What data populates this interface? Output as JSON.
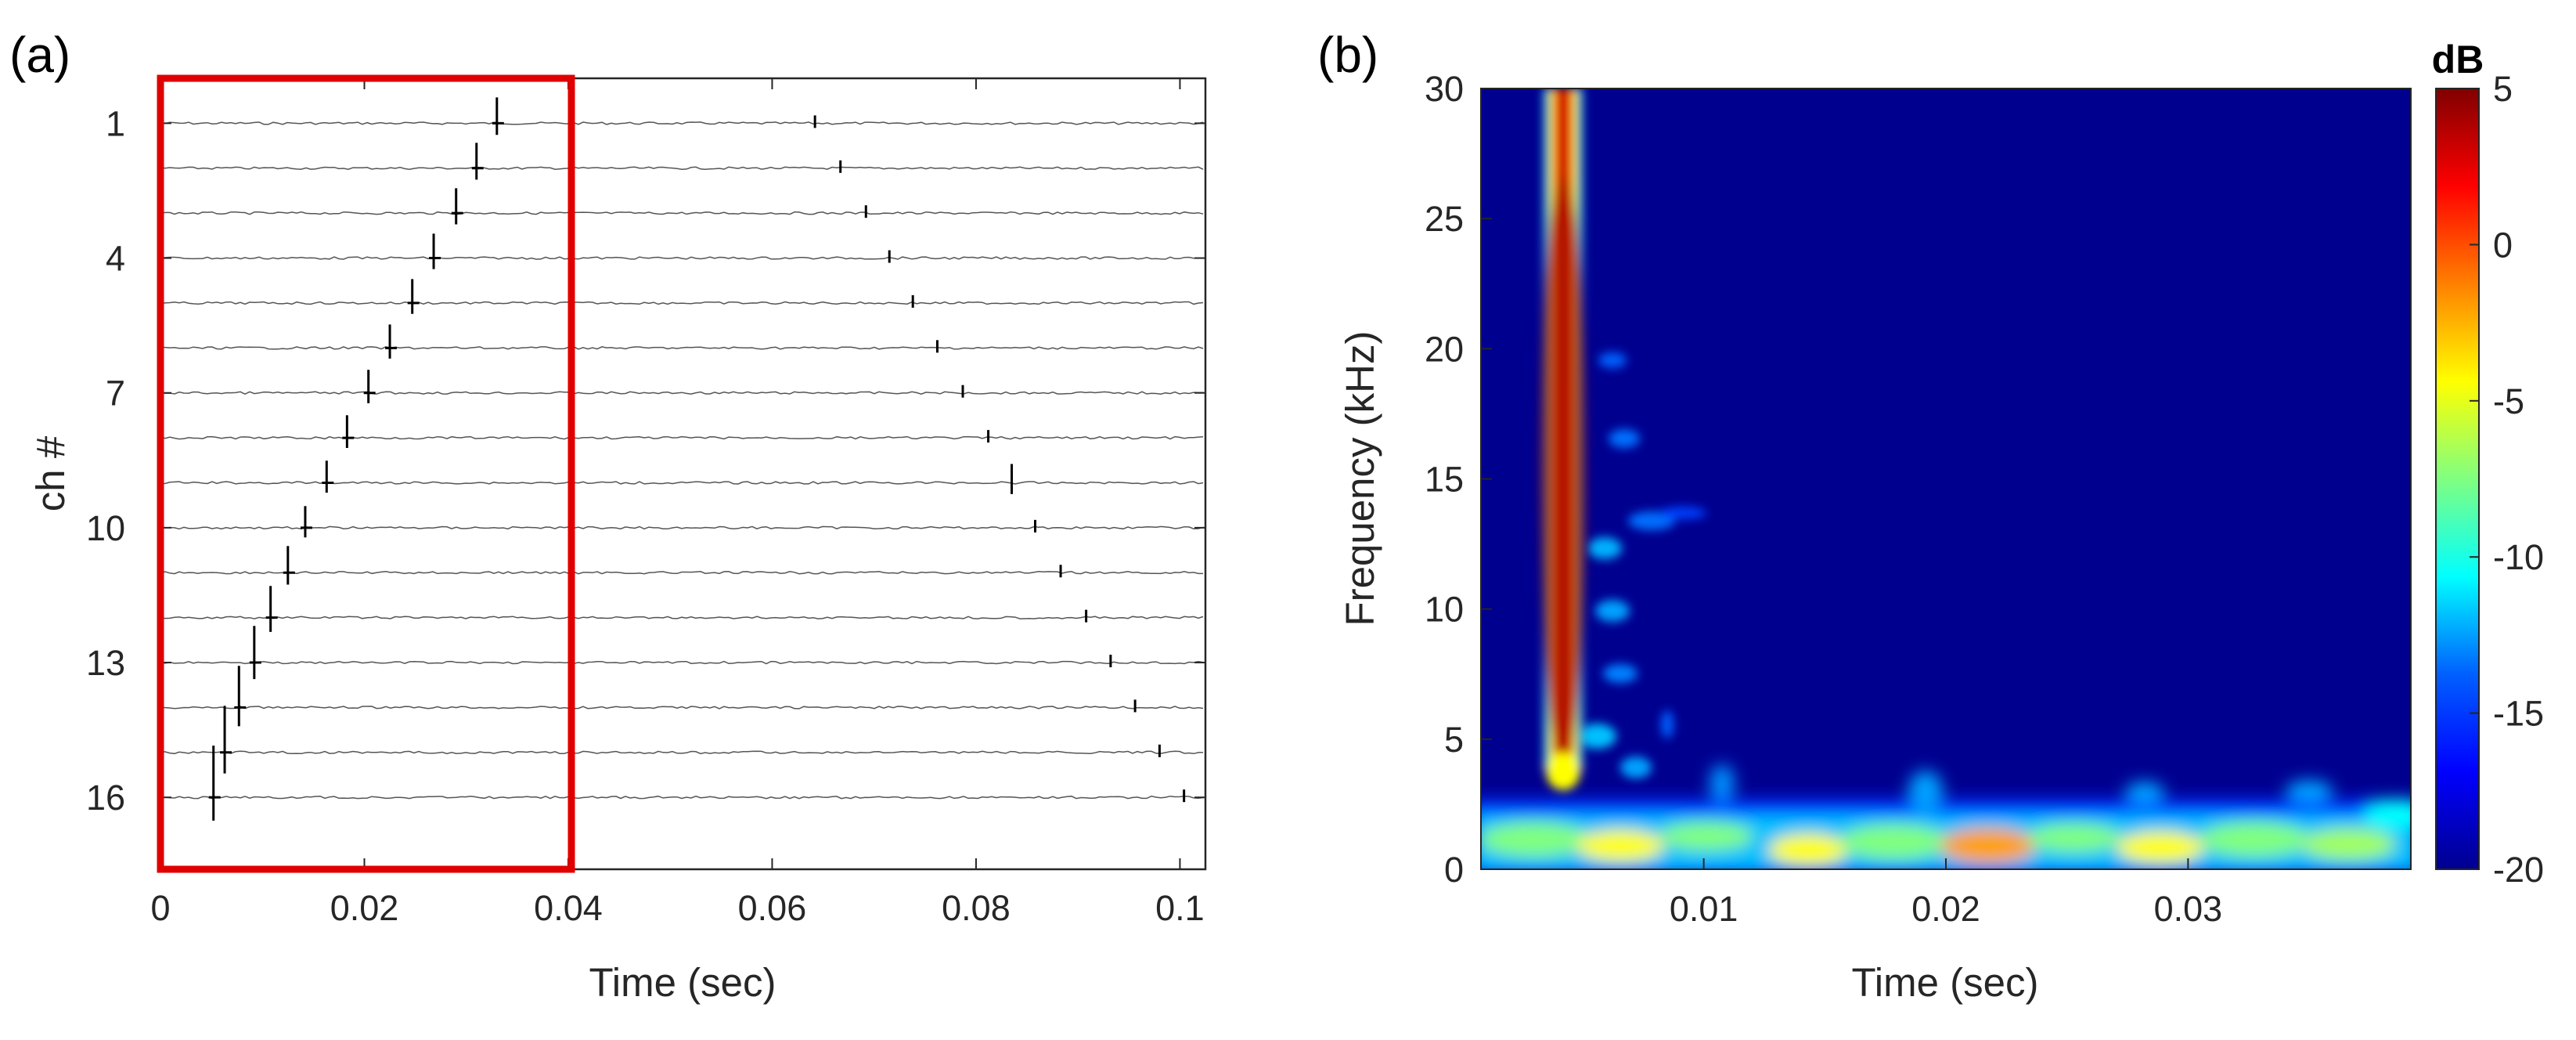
{
  "panels": [
    {
      "label": "(a)",
      "chart_data": {
        "type": "line",
        "subtype": "multichannel-waveform",
        "xlabel": "Time (sec)",
        "ylabel": "ch #",
        "xlim": [
          0,
          0.1025
        ],
        "ylim": [
          17.6,
          0
        ],
        "x_ticks": [
          "0",
          "0.02",
          "0.04",
          "0.06",
          "0.08",
          "0.1"
        ],
        "x_tick_values": [
          0,
          0.02,
          0.04,
          0.06,
          0.08,
          0.1
        ],
        "y_ticks": [
          "1",
          "4",
          "7",
          "10",
          "13",
          "16"
        ],
        "y_tick_values": [
          1,
          4,
          7,
          10,
          13,
          16
        ],
        "grid": false,
        "channels": 16,
        "trace_color": "#000000",
        "pulse_arrivals_sec": [
          {
            "channel": 1,
            "first": 0.033,
            "second": 0.0642
          },
          {
            "channel": 2,
            "first": 0.031,
            "second": 0.0667
          },
          {
            "channel": 3,
            "first": 0.029,
            "second": 0.0692
          },
          {
            "channel": 4,
            "first": 0.0268,
            "second": 0.0715
          },
          {
            "channel": 5,
            "first": 0.0247,
            "second": 0.0738
          },
          {
            "channel": 6,
            "first": 0.0225,
            "second": 0.0762
          },
          {
            "channel": 7,
            "first": 0.0204,
            "second": 0.0787
          },
          {
            "channel": 8,
            "first": 0.0183,
            "second": 0.0812
          },
          {
            "channel": 9,
            "first": 0.0163,
            "second": 0.0835
          },
          {
            "channel": 10,
            "first": 0.0142,
            "second": 0.0858
          },
          {
            "channel": 11,
            "first": 0.0125,
            "second": 0.0883
          },
          {
            "channel": 12,
            "first": 0.0108,
            "second": 0.0908
          },
          {
            "channel": 13,
            "first": 0.0092,
            "second": 0.0932
          },
          {
            "channel": 14,
            "first": 0.0077,
            "second": 0.0956
          },
          {
            "channel": 15,
            "first": 0.0063,
            "second": 0.098
          },
          {
            "channel": 16,
            "first": 0.0052,
            "second": 0.1004
          }
        ],
        "annotation": {
          "type": "rectangle",
          "color": "#e00000",
          "x_range": [
            0,
            0.04
          ]
        }
      }
    },
    {
      "label": "(b)",
      "chart_data": {
        "type": "heatmap",
        "subtype": "spectrogram",
        "xlabel": "Time (sec)",
        "ylabel": "Frequency (kHz)",
        "xlim": [
          0.0008,
          0.0392
        ],
        "ylim": [
          0,
          30
        ],
        "x_ticks": [
          "0.01",
          "0.02",
          "0.03"
        ],
        "x_tick_values": [
          0.01,
          0.02,
          0.03
        ],
        "y_ticks": [
          "0",
          "5",
          "10",
          "15",
          "20",
          "25",
          "30"
        ],
        "y_tick_values": [
          0,
          5,
          10,
          15,
          20,
          25,
          30
        ],
        "colormap": "jet",
        "colorbar": {
          "title": "dB",
          "range": [
            -20,
            5
          ],
          "ticks": [
            "5",
            "0",
            "-5",
            "-10",
            "-15",
            "-20"
          ],
          "tick_values": [
            5,
            0,
            -5,
            -10,
            -15,
            -20
          ]
        },
        "features": [
          {
            "type": "vertical-band",
            "x_sec": 0.0045,
            "freq_kHz": [
              3,
              30
            ],
            "peak_dB": 5
          },
          {
            "type": "low-frequency-band",
            "freq_kHz": [
              0,
              2.5
            ],
            "level_dB": -12
          }
        ],
        "jet_colors": [
          "#00008f",
          "#0000ff",
          "#0080ff",
          "#00ffff",
          "#80ff80",
          "#ffff00",
          "#ff8000",
          "#ff0000",
          "#800000"
        ]
      }
    }
  ]
}
